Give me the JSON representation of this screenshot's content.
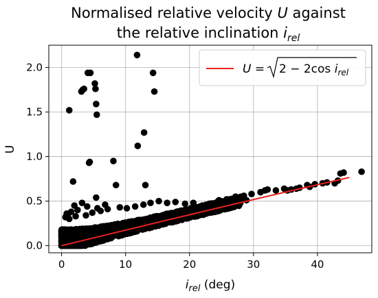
{
  "chart_data": {
    "type": "scatter",
    "title": {
      "line1_prefix": "Normalised relative velocity ",
      "line1_var": "U",
      "line1_suffix": " against",
      "line2_prefix": "the relative inclination ",
      "line2_var": "i",
      "line2_sub": "rel"
    },
    "xlabel": {
      "var": "i",
      "sub": "rel",
      "unit": " (deg)"
    },
    "ylabel": "U",
    "xlim": [
      -2,
      48.5
    ],
    "ylim": [
      -0.08,
      2.25
    ],
    "xticks": [
      0,
      10,
      20,
      30,
      40
    ],
    "xtick_labels": [
      "0",
      "10",
      "20",
      "30",
      "40"
    ],
    "yticks": [
      0.0,
      0.5,
      1.0,
      1.5,
      2.0
    ],
    "ytick_labels": [
      "0.0",
      "0.5",
      "1.0",
      "1.5",
      "2.0"
    ],
    "grid": true,
    "legend_placement": "top-right",
    "legend": {
      "name": "U = √(2 − 2cos i_rel)",
      "lhs": "U",
      "eq": " = ",
      "sqrt_body_a": "2 − 2cos ",
      "sqrt_var": "i",
      "sqrt_sub": "rel"
    },
    "points_color": "#000000",
    "line_color": "#e8211d",
    "series": [
      {
        "kind": "scatter",
        "x": [
          1.2,
          1.8,
          3.1,
          3.3,
          3.5,
          4.1,
          4.3,
          4.4,
          4.5,
          5.2,
          5.3,
          5.4,
          5.5,
          5.4,
          8.1,
          8.5,
          11.8,
          11.9,
          12.9,
          13.1,
          14.3,
          14.5,
          1.0,
          2.0,
          3.2,
          4.0,
          5.6,
          6.8,
          2.5,
          1.5,
          0.6,
          1.2,
          0.8,
          2.2,
          3.8,
          4.8,
          6.1,
          7.2,
          9.1,
          10.2,
          11.5,
          12.8,
          13.9,
          15.2,
          16.5,
          17.8,
          19.3,
          20.6,
          22.0,
          23.1,
          24.6,
          25.8,
          27.2,
          28.5,
          29.7,
          31.1,
          32.2,
          33.5,
          34.8,
          35.9,
          37.2,
          38.4,
          39.6,
          40.8,
          41.5,
          42.7,
          43.2,
          43.6,
          44.1,
          46.9,
          28.9,
          31.8,
          35.3,
          36.7,
          38.8,
          26.7,
          23.8,
          21.3
        ],
        "y": [
          1.52,
          0.72,
          1.73,
          1.75,
          1.76,
          1.94,
          0.93,
          0.94,
          1.94,
          1.82,
          1.76,
          1.59,
          1.47,
          0.54,
          0.95,
          0.68,
          2.14,
          1.12,
          1.27,
          0.68,
          1.94,
          1.73,
          0.35,
          0.45,
          0.48,
          0.44,
          0.42,
          0.46,
          0.4,
          0.38,
          0.32,
          0.3,
          0.36,
          0.33,
          0.34,
          0.37,
          0.39,
          0.41,
          0.43,
          0.42,
          0.44,
          0.46,
          0.48,
          0.5,
          0.48,
          0.49,
          0.47,
          0.48,
          0.45,
          0.47,
          0.51,
          0.52,
          0.55,
          0.56,
          0.58,
          0.6,
          0.63,
          0.62,
          0.64,
          0.63,
          0.65,
          0.68,
          0.69,
          0.7,
          0.71,
          0.7,
          0.73,
          0.81,
          0.82,
          0.83,
          0.51,
          0.62,
          0.62,
          0.64,
          0.66,
          0.44,
          0.41,
          0.36
        ]
      },
      {
        "kind": "line",
        "x": [
          0,
          45
        ],
        "formula": "sqrt(2 - 2cos(i_rel))"
      }
    ]
  }
}
